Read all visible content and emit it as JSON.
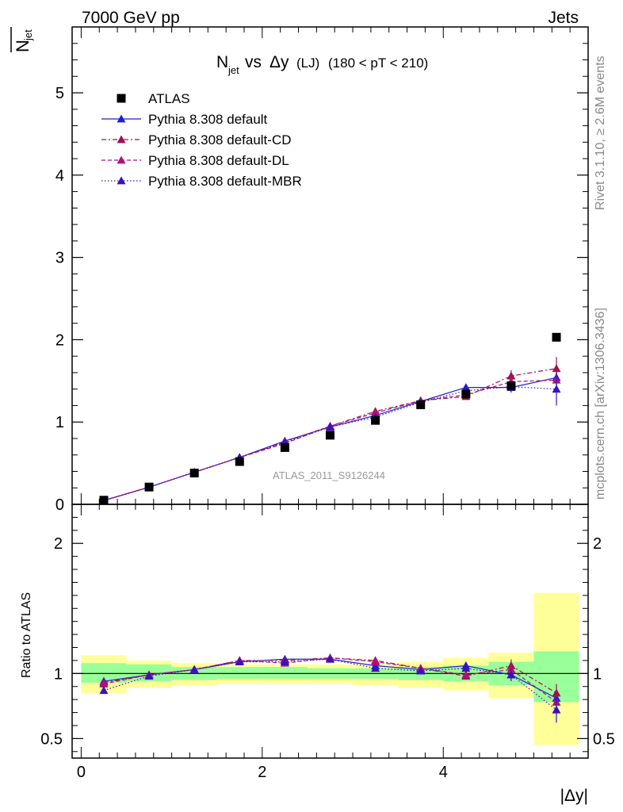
{
  "header": {
    "left": "7000 GeV pp",
    "right": "Jets"
  },
  "title": {
    "prefix": "N",
    "sub": "jet",
    "mid": " vs ",
    "delta": "Δy",
    "small": "(LJ)",
    "range": "(180 < pT < 210)"
  },
  "ylabel": {
    "main": "N",
    "sub": "jet"
  },
  "ratio_ylabel": "Ratio to ATLAS",
  "xlabel": "|Δy|",
  "watermark": "ATLAS_2011_S9126244",
  "side_text": {
    "top": "Rivet 3.1.10, ≥ 2.6M events",
    "bottom": "mcplots.cern.ch [arXiv:1306.3436]"
  },
  "upper_y_ticks": [
    "0",
    "1",
    "2",
    "3",
    "4",
    "5"
  ],
  "ratio_y_ticks": [
    "0.5",
    "1",
    "2"
  ],
  "x_ticks": [
    "0",
    "2",
    "4"
  ],
  "colors": {
    "data": "#000000",
    "default": "#1f1fd6",
    "cd": "#a01050",
    "dl": "#b0107a",
    "mbr": "#3a10c0",
    "band_inner": "#99ff99",
    "band_outer": "#ffff99"
  },
  "chart_data": {
    "type": "scatter",
    "x": [
      0.25,
      0.75,
      1.25,
      1.75,
      2.25,
      2.75,
      3.25,
      3.75,
      4.25,
      4.75,
      5.25
    ],
    "xlim": [
      -0.1,
      5.6
    ],
    "upper_ylim": [
      0,
      5.8
    ],
    "ratio_ylim": [
      0.35,
      2.3
    ],
    "data": {
      "name": "ATLAS",
      "values": [
        0.05,
        0.21,
        0.38,
        0.52,
        0.69,
        0.84,
        1.02,
        1.21,
        1.34,
        1.44,
        2.03
      ]
    },
    "series": [
      {
        "name": "Pythia 8.308 default",
        "key": "default",
        "values": [
          0.047,
          0.209,
          0.39,
          0.57,
          0.77,
          0.94,
          1.08,
          1.25,
          1.42,
          1.42,
          1.54
        ],
        "errors": [
          0,
          0,
          0,
          0,
          0,
          0,
          0.02,
          0.02,
          0.04,
          0.06,
          0.12
        ],
        "ratio": [
          0.94,
          0.99,
          1.03,
          1.09,
          1.11,
          1.11,
          1.06,
          1.03,
          1.06,
          0.99,
          0.81
        ]
      },
      {
        "name": "Pythia 8.308 default-CD",
        "key": "cd",
        "values": [
          0.047,
          0.209,
          0.39,
          0.57,
          0.76,
          0.95,
          1.13,
          1.26,
          1.31,
          1.56,
          1.65
        ],
        "errors": [
          0,
          0,
          0,
          0,
          0,
          0,
          0.02,
          0.02,
          0.03,
          0.07,
          0.14
        ],
        "ratio": [
          0.93,
          0.99,
          1.03,
          1.1,
          1.1,
          1.12,
          1.1,
          1.04,
          0.98,
          1.06,
          0.85
        ]
      },
      {
        "name": "Pythia 8.308 default-DL",
        "key": "dl",
        "values": [
          0.047,
          0.209,
          0.39,
          0.57,
          0.74,
          0.95,
          1.11,
          1.26,
          1.33,
          1.49,
          1.51
        ],
        "errors": [
          0,
          0,
          0,
          0,
          0,
          0,
          0.02,
          0.02,
          0.03,
          0.07,
          0.12
        ],
        "ratio": [
          0.92,
          0.99,
          1.03,
          1.1,
          1.08,
          1.12,
          1.09,
          1.04,
          0.99,
          1.03,
          0.78
        ]
      },
      {
        "name": "Pythia 8.308 default-MBR",
        "key": "mbr",
        "values": [
          0.044,
          0.207,
          0.39,
          0.57,
          0.75,
          0.94,
          1.06,
          1.24,
          1.38,
          1.43,
          1.4
        ],
        "errors": [
          0,
          0,
          0,
          0,
          0,
          0,
          0.02,
          0.02,
          0.04,
          0.07,
          0.2
        ],
        "ratio": [
          0.87,
          0.98,
          1.03,
          1.09,
          1.09,
          1.11,
          1.04,
          1.02,
          1.04,
          0.99,
          0.72
        ]
      }
    ],
    "bands": {
      "inner": [
        [
          0.93,
          1.08
        ],
        [
          0.94,
          1.07
        ],
        [
          0.95,
          1.05
        ],
        [
          0.96,
          1.05
        ],
        [
          0.96,
          1.05
        ],
        [
          0.96,
          1.04
        ],
        [
          0.96,
          1.04
        ],
        [
          0.95,
          1.05
        ],
        [
          0.94,
          1.06
        ],
        [
          0.91,
          1.09
        ],
        [
          0.78,
          1.17
        ]
      ],
      "outer": [
        [
          0.85,
          1.14
        ],
        [
          0.89,
          1.1
        ],
        [
          0.91,
          1.08
        ],
        [
          0.92,
          1.07
        ],
        [
          0.92,
          1.07
        ],
        [
          0.92,
          1.07
        ],
        [
          0.91,
          1.07
        ],
        [
          0.89,
          1.09
        ],
        [
          0.87,
          1.12
        ],
        [
          0.81,
          1.16
        ],
        [
          0.45,
          1.62
        ]
      ]
    }
  }
}
